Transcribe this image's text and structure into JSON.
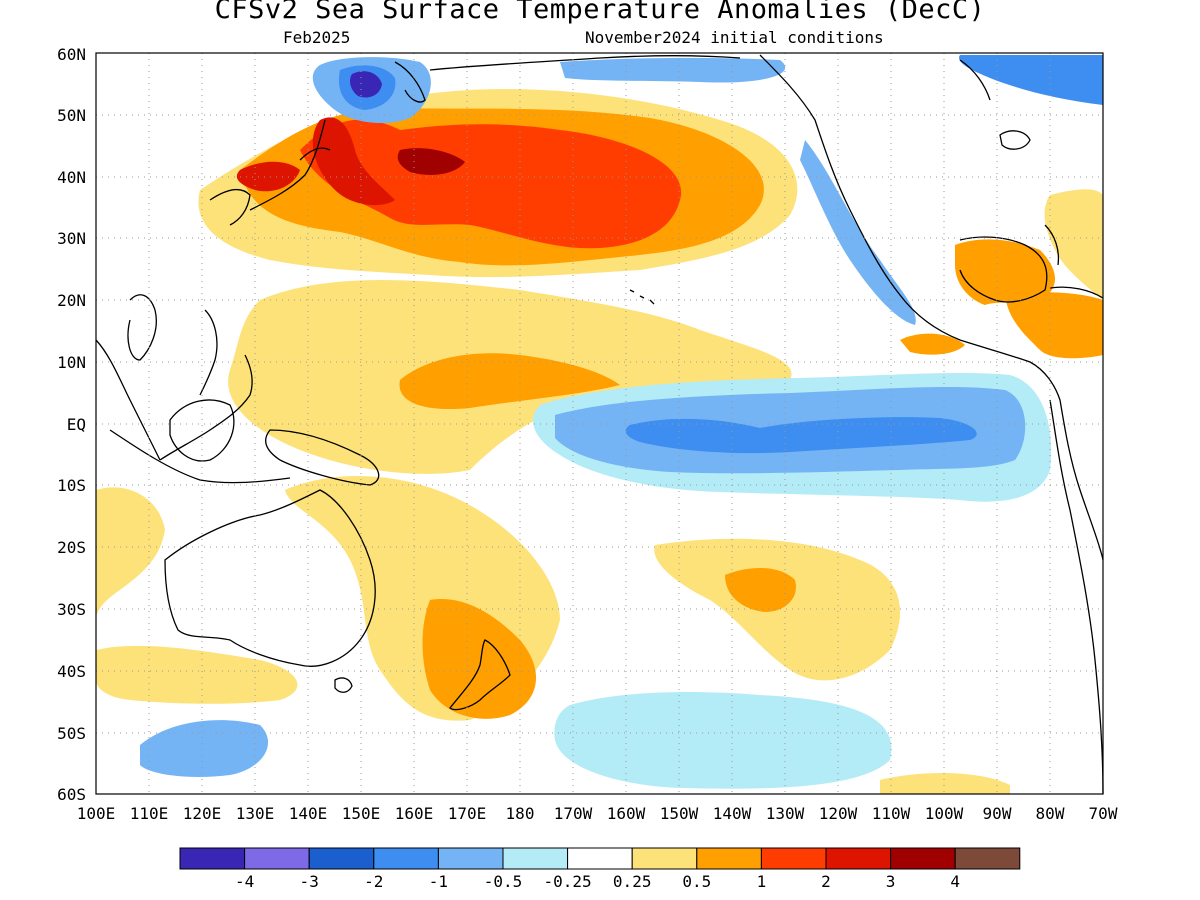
{
  "header": {
    "title": "CFSv2 Sea Surface Temperature Anomalies (DecC)",
    "valid_month": "Feb2025",
    "initial_conditions": "November2024 initial conditions"
  },
  "map": {
    "region": "Pacific Ocean",
    "lon_range": [
      "100E",
      "70W"
    ],
    "lat_range": [
      "60S",
      "60N"
    ],
    "grid": "dotted"
  },
  "axes": {
    "lat_labels": [
      "60N",
      "50N",
      "40N",
      "30N",
      "20N",
      "10N",
      "EQ",
      "10S",
      "20S",
      "30S",
      "40S",
      "50S",
      "60S"
    ],
    "lon_labels": [
      "100E",
      "110E",
      "120E",
      "130E",
      "140E",
      "150E",
      "160E",
      "170E",
      "180",
      "170W",
      "160W",
      "150W",
      "140W",
      "130W",
      "120W",
      "110W",
      "100W",
      "90W",
      "80W",
      "70W"
    ]
  },
  "colorbar": {
    "labels": [
      "-4",
      "-3",
      "-2",
      "-1",
      "-0.5",
      "-0.25",
      "0.25",
      "0.5",
      "1",
      "2",
      "3",
      "4"
    ],
    "colors": [
      "#3a26b4",
      "#7e6ae6",
      "#1b5fcf",
      "#3d8ef0",
      "#74b4f5",
      "#b3ecf7",
      "#ffffff",
      "#fde27a",
      "#ff9f00",
      "#ff3d00",
      "#dd1400",
      "#a00000",
      "#7d4a3a"
    ]
  },
  "colors": {
    "cold_strong": "#3a26b4",
    "cold": "#3d8ef0",
    "warm": "#ff9f00",
    "warm_strong": "#ff3d00",
    "land_outline": "#000000"
  }
}
